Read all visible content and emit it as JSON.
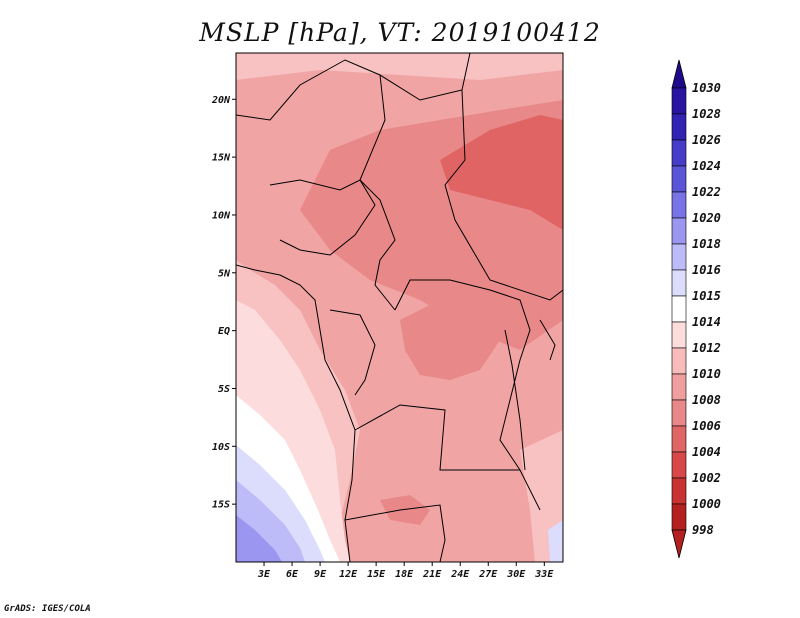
{
  "title": "MSLP [hPa], VT: 2019100412",
  "credit": "GrADS: IGES/COLA",
  "map": {
    "lon_range": [
      0,
      35
    ],
    "lat_range": [
      -20,
      24
    ],
    "lat_ticks": [
      {
        "value": 20,
        "label": "20N"
      },
      {
        "value": 15,
        "label": "15N"
      },
      {
        "value": 10,
        "label": "10N"
      },
      {
        "value": 5,
        "label": "5N"
      },
      {
        "value": 0,
        "label": "EQ"
      },
      {
        "value": -5,
        "label": "5S"
      },
      {
        "value": -10,
        "label": "10S"
      },
      {
        "value": -15,
        "label": "15S"
      }
    ],
    "lon_ticks": [
      {
        "value": 3,
        "label": "3E"
      },
      {
        "value": 6,
        "label": "6E"
      },
      {
        "value": 9,
        "label": "9E"
      },
      {
        "value": 12,
        "label": "12E"
      },
      {
        "value": 15,
        "label": "15E"
      },
      {
        "value": 18,
        "label": "18E"
      },
      {
        "value": 21,
        "label": "21E"
      },
      {
        "value": 24,
        "label": "24E"
      },
      {
        "value": 27,
        "label": "27E"
      },
      {
        "value": 30,
        "label": "30E"
      },
      {
        "value": 33,
        "label": "33E"
      }
    ]
  },
  "colorbar": {
    "levels": [
      {
        "label": "1030",
        "color": "#1e0a8c"
      },
      {
        "label": "1028",
        "color": "#2814a0"
      },
      {
        "label": "1026",
        "color": "#3223b4"
      },
      {
        "label": "1024",
        "color": "#463cc8"
      },
      {
        "label": "1022",
        "color": "#5a55d7"
      },
      {
        "label": "1020",
        "color": "#7873e6"
      },
      {
        "label": "1018",
        "color": "#9b96f0"
      },
      {
        "label": "1016",
        "color": "#bebcf8"
      },
      {
        "label": "1015",
        "color": "#dcdcfc"
      },
      {
        "label": "1014",
        "color": "#ffffff"
      },
      {
        "label": "1012",
        "color": "#fddcdc"
      },
      {
        "label": "1010",
        "color": "#f8bcbc"
      },
      {
        "label": "1008",
        "color": "#f09e9e"
      },
      {
        "label": "1006",
        "color": "#e88888"
      },
      {
        "label": "1004",
        "color": "#e06666"
      },
      {
        "label": "1002",
        "color": "#d84848"
      },
      {
        "label": "1000",
        "color": "#c83232"
      },
      {
        "label": "998",
        "color": "#b42020"
      }
    ],
    "top_color": "#1e0a8c",
    "bottom_color": "#b42020"
  }
}
